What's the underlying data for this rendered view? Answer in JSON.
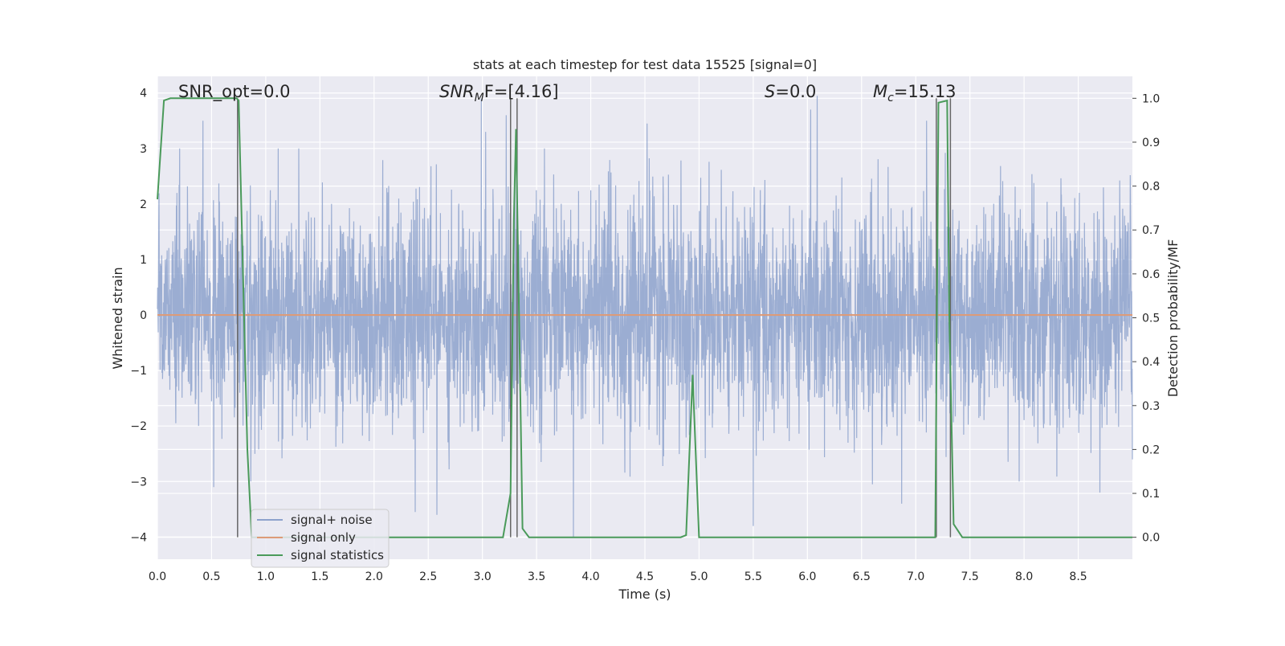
{
  "chart_data": {
    "type": "line",
    "title": "stats at each timestep for test data 15525 [signal=0]",
    "xlabel": "Time (s)",
    "ylabel": "Whitened strain",
    "y2label": "Detection probability/MF",
    "xlim": [
      0.0,
      9.0
    ],
    "ylim": [
      -4.4,
      4.3
    ],
    "y2lim": [
      -0.05,
      1.05
    ],
    "grid": true,
    "xticks": [
      "0.0",
      "0.5",
      "1.0",
      "1.5",
      "2.0",
      "2.5",
      "3.0",
      "3.5",
      "4.0",
      "4.5",
      "5.0",
      "5.5",
      "6.0",
      "6.5",
      "7.0",
      "7.5",
      "8.0",
      "8.5"
    ],
    "yticks": [
      "4",
      "3",
      "2",
      "1",
      "0",
      "−1",
      "−2",
      "−3",
      "−4"
    ],
    "y2ticks": [
      "1.0",
      "0.9",
      "0.8",
      "0.7",
      "0.6",
      "0.5",
      "0.4",
      "0.3",
      "0.2",
      "0.1",
      "0.0"
    ],
    "annotations": {
      "snr_opt": "SNR_opt=0.0",
      "snr_mf_main": "SNR",
      "snr_mf_sub": "M",
      "snr_mf_rest": "F=[4.16]",
      "s_main": "S",
      "s_rest": "=0.0",
      "mc_main": "M",
      "mc_sub": "c",
      "mc_rest": "=15.13"
    },
    "legend": {
      "placement": "lower-left",
      "entries": [
        "signal+ noise",
        "signal only",
        "signal statistics"
      ]
    },
    "series": [
      {
        "name": "signal+ noise",
        "color": "#8da2cc",
        "sampling_dt": 0.0025,
        "envelope_sigma": 1.0,
        "peaks": [
          [
            0.42,
            3.5
          ],
          [
            0.17,
            -1.95
          ],
          [
            0.52,
            -3.1
          ],
          [
            2.58,
            -3.6
          ],
          [
            2.38,
            -3.55
          ],
          [
            2.99,
            3.9
          ],
          [
            3.03,
            3.3
          ],
          [
            3.22,
            3.6
          ],
          [
            3.84,
            -4.0
          ],
          [
            4.52,
            3.45
          ],
          [
            5.5,
            -3.8
          ],
          [
            6.09,
            3.95
          ],
          [
            6.03,
            3.7
          ],
          [
            6.6,
            -3.05
          ],
          [
            6.87,
            -3.4
          ],
          [
            7.1,
            3.5
          ],
          [
            8.7,
            -3.2
          ],
          [
            9.0,
            -2.6
          ]
        ]
      },
      {
        "name": "signal only",
        "color": "#dd9b78",
        "values": [
          [
            0.0,
            0.0
          ],
          [
            9.0,
            0.0
          ]
        ]
      },
      {
        "name": "signal statistics",
        "color": "#4a9a5a",
        "axis": "right",
        "points": [
          [
            0.0,
            0.77
          ],
          [
            0.06,
            0.995
          ],
          [
            0.12,
            1.0
          ],
          [
            0.73,
            1.0
          ],
          [
            0.75,
            0.995
          ],
          [
            0.83,
            0.2
          ],
          [
            0.87,
            0.0
          ],
          [
            3.19,
            0.0
          ],
          [
            3.26,
            0.1
          ],
          [
            3.29,
            0.72
          ],
          [
            3.31,
            0.93
          ],
          [
            3.37,
            0.02
          ],
          [
            3.43,
            0.0
          ],
          [
            4.83,
            0.0
          ],
          [
            4.88,
            0.005
          ],
          [
            4.94,
            0.37
          ],
          [
            5.0,
            0.0
          ],
          [
            7.18,
            0.0
          ],
          [
            7.21,
            0.99
          ],
          [
            7.29,
            0.995
          ],
          [
            7.31,
            0.5
          ],
          [
            7.35,
            0.03
          ],
          [
            7.43,
            0.0
          ],
          [
            9.0,
            0.0
          ]
        ]
      }
    ],
    "vertical_markers": {
      "color": "#666666",
      "x": [
        0.74,
        3.26,
        3.32,
        7.19,
        7.32
      ]
    },
    "colors": {
      "plot_background": "#eaeaf2",
      "grid": "#ffffff"
    }
  }
}
